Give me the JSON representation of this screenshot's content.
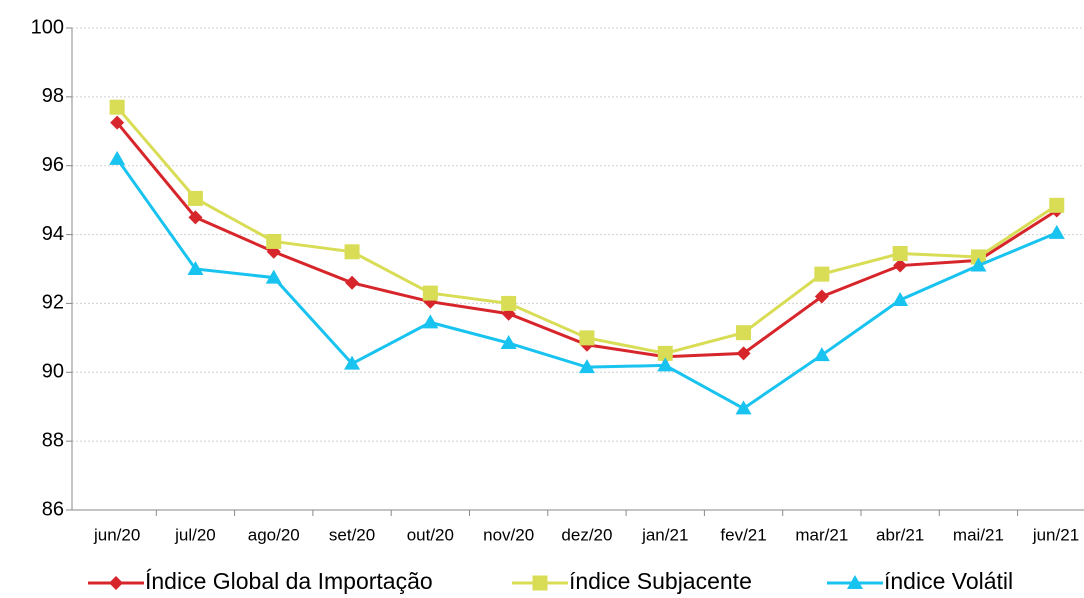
{
  "chart_data": {
    "type": "line",
    "categories": [
      "jun/20",
      "jul/20",
      "ago/20",
      "set/20",
      "out/20",
      "nov/20",
      "dez/20",
      "jan/21",
      "fev/21",
      "mar/21",
      "abr/21",
      "mai/21",
      "jun/21"
    ],
    "series": [
      {
        "name": "Índice Global da Importação",
        "color": "#d7262b",
        "marker": "diamond",
        "values": [
          97.25,
          94.5,
          93.5,
          92.6,
          92.05,
          91.7,
          90.8,
          90.45,
          90.55,
          92.2,
          93.1,
          93.25,
          94.7
        ]
      },
      {
        "name": "índice Subjacente",
        "color": "#d9dd55",
        "marker": "square",
        "values": [
          97.7,
          95.05,
          93.8,
          93.5,
          92.3,
          92.0,
          91.0,
          90.55,
          91.15,
          92.85,
          93.45,
          93.35,
          94.85
        ]
      },
      {
        "name": "índice Volátil",
        "color": "#19c3f0",
        "marker": "triangle",
        "values": [
          96.2,
          93.0,
          92.75,
          90.25,
          91.45,
          90.85,
          90.15,
          90.2,
          88.95,
          90.5,
          92.1,
          93.1,
          94.05
        ]
      }
    ],
    "ylim": [
      86,
      100
    ],
    "yticks": [
      86,
      88,
      90,
      92,
      94,
      96,
      98,
      100
    ],
    "grid": true
  }
}
